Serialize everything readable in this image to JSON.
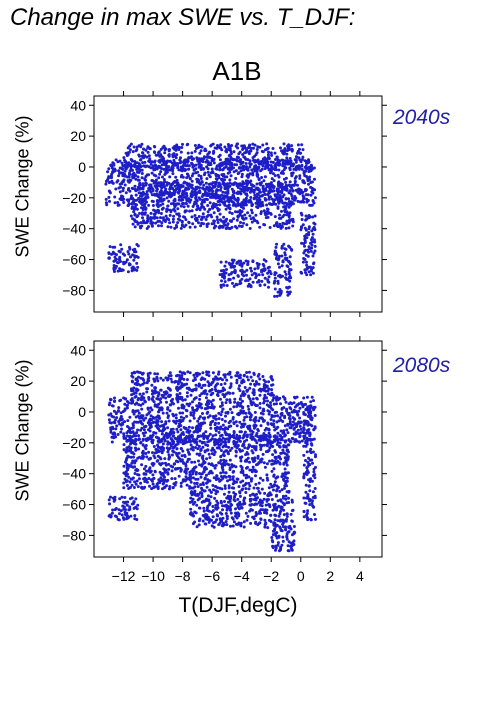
{
  "header": {
    "title": "Change in max SWE vs. T_DJF:",
    "scenario": "A1B"
  },
  "colors": {
    "points": "#1e1ec8",
    "period_label": "#2020aa"
  },
  "chart_data": [
    {
      "type": "scatter",
      "period": "2040s",
      "xlabel": "T(DJF,degC)",
      "ylabel": "SWE Change (%)",
      "xlim": [
        -14,
        5.5
      ],
      "ylim": [
        -94,
        46
      ],
      "xticks": [
        -12,
        -10,
        -8,
        -6,
        -4,
        -2,
        0,
        2,
        4
      ],
      "yticks": [
        40,
        20,
        0,
        -20,
        -40,
        -60,
        -80
      ],
      "grid": false,
      "point_cloud_regions": [
        {
          "x": [
            -12.0,
            0.2
          ],
          "y": [
            -2,
            15
          ]
        },
        {
          "x": [
            -13.2,
            1.0
          ],
          "y": [
            -25,
            5
          ]
        },
        {
          "x": [
            -11.5,
            -0.5
          ],
          "y": [
            -40,
            -10
          ]
        },
        {
          "x": [
            -13.0,
            -11.0
          ],
          "y": [
            -68,
            -50
          ]
        },
        {
          "x": [
            -5.5,
            -2.0
          ],
          "y": [
            -78,
            -60
          ]
        },
        {
          "x": [
            -1.8,
            -0.6
          ],
          "y": [
            -84,
            -50
          ]
        },
        {
          "x": [
            0.0,
            1.0
          ],
          "y": [
            -70,
            -30
          ]
        }
      ]
    },
    {
      "type": "scatter",
      "period": "2080s",
      "xlabel": "T(DJF,degC)",
      "ylabel": "SWE Change (%)",
      "xlim": [
        -14,
        5.5
      ],
      "ylim": [
        -94,
        46
      ],
      "xticks": [
        -12,
        -10,
        -8,
        -6,
        -4,
        -2,
        0,
        2,
        4
      ],
      "yticks": [
        40,
        20,
        0,
        -20,
        -40,
        -60,
        -80
      ],
      "grid": false,
      "point_cloud_regions": [
        {
          "x": [
            -11.5,
            -1.8
          ],
          "y": [
            10,
            26
          ]
        },
        {
          "x": [
            -13.0,
            0.8
          ],
          "y": [
            -20,
            10
          ]
        },
        {
          "x": [
            -12.0,
            -0.8
          ],
          "y": [
            -50,
            -15
          ]
        },
        {
          "x": [
            -13.0,
            -11.0
          ],
          "y": [
            -70,
            -55
          ]
        },
        {
          "x": [
            -7.5,
            -2.0
          ],
          "y": [
            -75,
            -50
          ]
        },
        {
          "x": [
            -2.0,
            -0.4
          ],
          "y": [
            -90,
            -50
          ]
        },
        {
          "x": [
            0.2,
            1.0
          ],
          "y": [
            -70,
            8
          ]
        }
      ]
    }
  ]
}
